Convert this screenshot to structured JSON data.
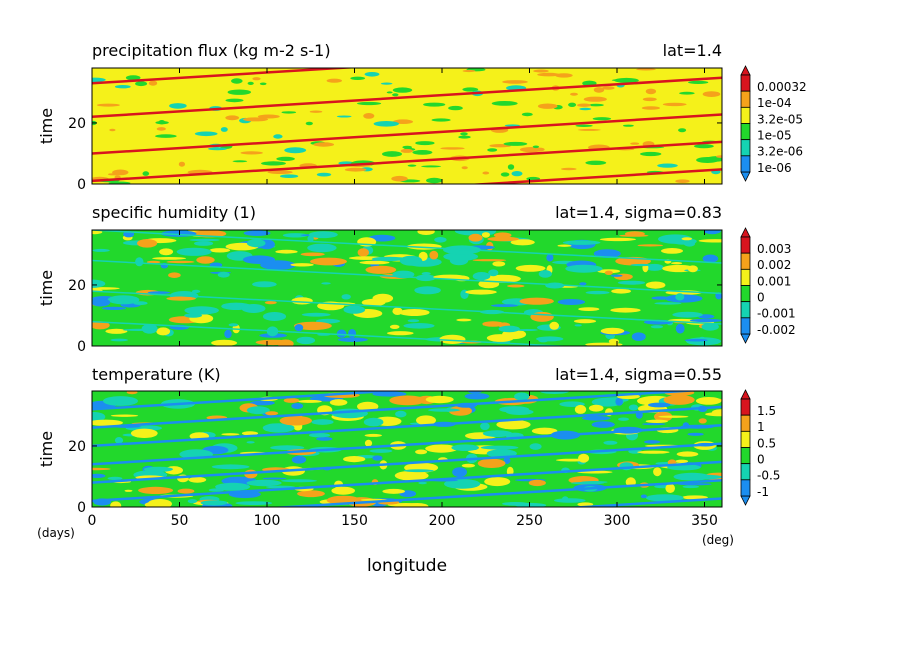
{
  "palette": {
    "red": "#d8141e",
    "orange": "#f5a21b",
    "yellow": "#f5f11a",
    "green": "#22d82c",
    "cyan": "#15d3b2",
    "blue": "#1b8ef0"
  },
  "chart_data": [
    {
      "type": "heatmap",
      "title": "precipitation flux (kg m-2 s-1)",
      "annotation": "lat=1.4",
      "ylabel": "time",
      "xlim": [
        0,
        360
      ],
      "ylim": [
        0,
        38
      ],
      "yticks": [
        0,
        20
      ],
      "xticks": [
        0,
        50,
        100,
        150,
        200,
        250,
        300,
        350
      ],
      "show_xtick_labels": false,
      "levels": [
        "1e-06",
        "3.2e-06",
        "1e-05",
        "3.2e-05",
        "1e-04",
        "0.00032"
      ],
      "band_colors": [
        "blue",
        "cyan",
        "green",
        "yellow",
        "orange",
        "red"
      ],
      "background": "yellow",
      "streak_slope_days_per_degree": 0.0355,
      "streak_intercepts_days": [
        -8,
        1,
        10,
        22,
        33
      ],
      "streak_color": "red"
    },
    {
      "type": "heatmap",
      "title": "specific humidity (1)",
      "annotation": "lat=1.4, sigma=0.83",
      "ylabel": "time",
      "xlim": [
        0,
        360
      ],
      "ylim": [
        0,
        38
      ],
      "yticks": [
        0,
        20
      ],
      "xticks": [
        0,
        50,
        100,
        150,
        200,
        250,
        300,
        350
      ],
      "show_xtick_labels": false,
      "levels": [
        "-0.002",
        "-0.001",
        "0",
        "0.001",
        "0.002",
        "0.003"
      ],
      "band_colors": [
        "blue",
        "cyan",
        "green",
        "yellow",
        "orange",
        "red"
      ],
      "background": "green",
      "streak_slope_days_per_degree": -0.03,
      "streak_intercepts_days": [
        8,
        18,
        28,
        38
      ],
      "streak_color": "cyan"
    },
    {
      "type": "heatmap",
      "title": "temperature (K)",
      "annotation": "lat=1.4, sigma=0.55",
      "ylabel": "time",
      "xlabel": "longitude",
      "x_unit": "(deg)",
      "y_unit": "(days)",
      "xlim": [
        0,
        360
      ],
      "ylim": [
        0,
        38
      ],
      "yticks": [
        0,
        20
      ],
      "xticks": [
        0,
        50,
        100,
        150,
        200,
        250,
        300,
        350
      ],
      "show_xtick_labels": true,
      "levels": [
        "-1",
        "-0.5",
        "0",
        "0.5",
        "1",
        "1.5"
      ],
      "band_colors": [
        "blue",
        "cyan",
        "green",
        "yellow",
        "orange",
        "red"
      ],
      "background": "green",
      "streak_slope_days_per_degree": 0.0355,
      "streak_intercepts_days": [
        -10,
        -4,
        2,
        8,
        14,
        20,
        26,
        32
      ],
      "streak_color": "blue"
    }
  ]
}
